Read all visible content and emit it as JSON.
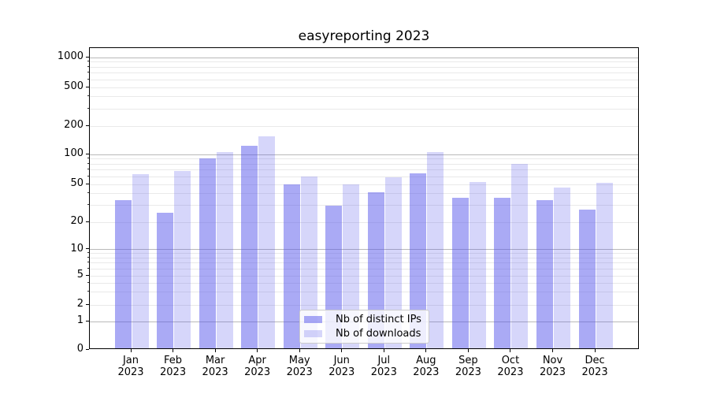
{
  "title": "easyreporting 2023",
  "chart_data": {
    "type": "bar",
    "title": "easyreporting 2023",
    "categories": [
      "Jan",
      "Feb",
      "Mar",
      "Apr",
      "May",
      "Jun",
      "Jul",
      "Aug",
      "Sep",
      "Oct",
      "Nov",
      "Dec"
    ],
    "category_year": "2023",
    "series": [
      {
        "name": "Nb of distinct IPs",
        "color_rgb": "85,85,235",
        "alpha": 0.5,
        "values": [
          33,
          24,
          88,
          119,
          48,
          29,
          40,
          62,
          35,
          35,
          33,
          26
        ]
      },
      {
        "name": "Nb of downloads",
        "color_rgb": "85,85,235",
        "alpha": 0.24,
        "values": [
          61,
          66,
          102,
          150,
          58,
          48,
          57,
          102,
          51,
          77,
          45,
          50
        ]
      }
    ],
    "yscale": "symlog",
    "yticks": [
      0,
      1,
      2,
      5,
      10,
      20,
      50,
      100,
      200,
      500,
      1000
    ],
    "ylim": [
      0,
      1300
    ],
    "grid": true,
    "legend_position": "lower center"
  },
  "legend": {
    "items": [
      {
        "label": "Nb of distinct IPs",
        "color": "rgba(85,85,235,0.5)"
      },
      {
        "label": "Nb of downloads",
        "color": "rgba(85,85,235,0.24)"
      }
    ]
  }
}
